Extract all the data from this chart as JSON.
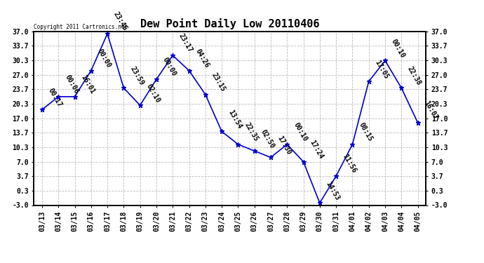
{
  "title": "Dew Point Daily Low 20110406",
  "copyright_text": "Copyright 2011 Cartronics.net",
  "dates": [
    "03/13",
    "03/14",
    "03/15",
    "03/16",
    "03/17",
    "03/18",
    "03/19",
    "03/20",
    "03/21",
    "03/22",
    "03/23",
    "03/24",
    "03/25",
    "03/26",
    "03/27",
    "03/28",
    "03/29",
    "03/30",
    "03/31",
    "04/01",
    "04/02",
    "04/03",
    "04/04",
    "04/05"
  ],
  "values": [
    19.0,
    22.0,
    22.0,
    28.0,
    36.5,
    24.0,
    20.0,
    26.0,
    31.5,
    28.0,
    22.5,
    14.0,
    11.0,
    9.5,
    8.0,
    11.0,
    7.0,
    -2.5,
    3.7,
    11.0,
    25.5,
    30.3,
    24.0,
    16.0
  ],
  "time_labels": [
    "00:17",
    "00:06",
    "16:01",
    "00:00",
    "23:46",
    "23:59",
    "02:10",
    "00:00",
    "23:17",
    "04:26",
    "23:15",
    "13:54",
    "22:35",
    "02:50",
    "17:30",
    "00:10",
    "17:24",
    "14:53",
    "11:56",
    "08:15",
    "17:05",
    "00:10",
    "22:38",
    "16:07"
  ],
  "yticks": [
    -3.0,
    0.3,
    3.7,
    7.0,
    10.3,
    13.7,
    17.0,
    20.3,
    23.7,
    27.0,
    30.3,
    33.7,
    37.0
  ],
  "ylim": [
    -3.0,
    37.0
  ],
  "line_color": "#0000CC",
  "marker_color": "#0000CC",
  "grid_color": "#BBBBBB",
  "bg_color": "#FFFFFF",
  "title_fontsize": 11,
  "tick_fontsize": 7,
  "annot_fontsize": 7
}
